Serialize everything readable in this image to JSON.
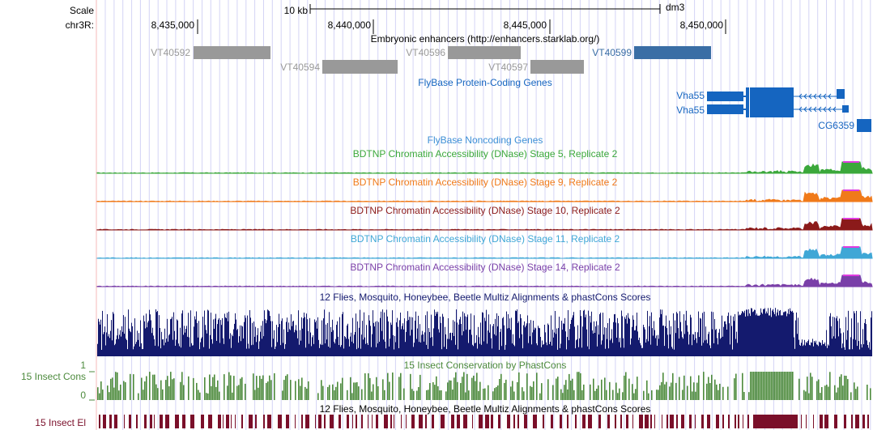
{
  "ruler": {
    "scale_label": "Scale",
    "chrom_label": "chr3R:",
    "scale_text": "10 kb",
    "assembly": "dm3",
    "ticks": [
      "8,435,000",
      "8,440,000",
      "8,445,000",
      "8,450,000"
    ]
  },
  "tracks": {
    "enhancers": {
      "title": "Embryonic enhancers (http://enhancers.starklab.org/)",
      "items": [
        {
          "name": "VT40592",
          "color": "#999999"
        },
        {
          "name": "VT40594",
          "color": "#999999"
        },
        {
          "name": "VT40596",
          "color": "#999999"
        },
        {
          "name": "VT40597",
          "color": "#999999"
        },
        {
          "name": "VT40599",
          "color": "#3a6ea5"
        }
      ]
    },
    "genes": {
      "title": "FlyBase Protein-Coding Genes",
      "color": "#1565c0",
      "items": [
        "Vha55",
        "Vha55",
        "CG6359"
      ]
    },
    "noncoding": {
      "title": "FlyBase Noncoding Genes",
      "color": "#3d8fd6"
    },
    "dnase": [
      {
        "title": "BDTNP Chromatin Accessibility (DNase) Stage 5, Replicate 2",
        "color": "#3ba83b"
      },
      {
        "title": "BDTNP Chromatin Accessibility (DNase) Stage 9, Replicate 2",
        "color": "#f07a1a"
      },
      {
        "title": "BDTNP Chromatin Accessibility (DNase) Stage 10, Replicate 2",
        "color": "#8b1a1a"
      },
      {
        "title": "BDTNP Chromatin Accessibility (DNase) Stage 11, Replicate 2",
        "color": "#3fa7d6"
      },
      {
        "title": "BDTNP Chromatin Accessibility (DNase) Stage 14, Replicate 2",
        "color": "#7a3fa8"
      }
    ],
    "multiz": {
      "title": "12 Flies, Mosquito, Honeybee, Beetle Multiz Alignments & phastCons Scores",
      "color": "#141a6e"
    },
    "phastcons": {
      "title": "15 Insect Conservation by PhastCons",
      "side_label": "15 Insect Cons",
      "ymax": "1",
      "ymin": "0",
      "color": "#4c8a3c"
    },
    "elements": {
      "title": "12 Flies, Mosquito, Honeybee, Beetle Multiz Alignments & phastCons Scores",
      "side_label": "15 Insect El",
      "color": "#7a0f2a"
    }
  },
  "colors": {
    "grid": "#d4d4f5",
    "side_divider": "#f4b8b8",
    "peak_top": "#e03ce0",
    "label_grey": "#999999"
  }
}
